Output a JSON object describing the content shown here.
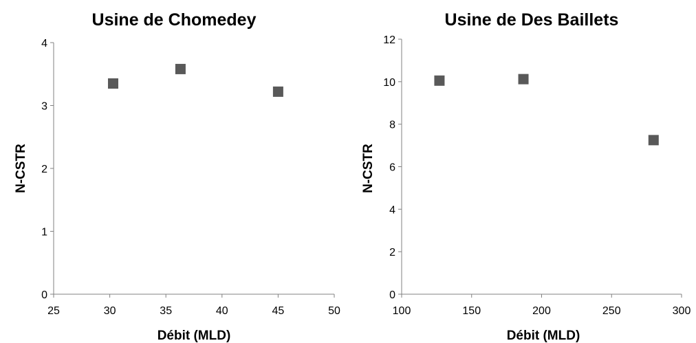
{
  "chart_data": [
    {
      "type": "scatter",
      "title": "Usine de Chomedey",
      "xlabel": "Débit (MLD)",
      "ylabel": "N-CSTR",
      "xlim": [
        25,
        50
      ],
      "ylim": [
        0,
        4
      ],
      "xticks": [
        25,
        30,
        35,
        40,
        45,
        50
      ],
      "yticks": [
        0,
        1,
        2,
        3,
        4
      ],
      "grid": false,
      "marker_color": "#595959",
      "series": [
        {
          "x": [
            30.3,
            36.3,
            45.0
          ],
          "y": [
            3.35,
            3.58,
            3.22
          ]
        }
      ]
    },
    {
      "type": "scatter",
      "title": "Usine de Des Baillets",
      "xlabel": "Débit (MLD)",
      "ylabel": "N-CSTR",
      "xlim": [
        100,
        300
      ],
      "ylim": [
        0,
        12
      ],
      "xticks": [
        100,
        150,
        200,
        250,
        300
      ],
      "yticks": [
        0,
        2,
        4,
        6,
        8,
        10,
        12
      ],
      "grid": false,
      "marker_color": "#595959",
      "series": [
        {
          "x": [
            127,
            187,
            280
          ],
          "y": [
            10.05,
            10.12,
            7.25
          ]
        }
      ]
    }
  ]
}
